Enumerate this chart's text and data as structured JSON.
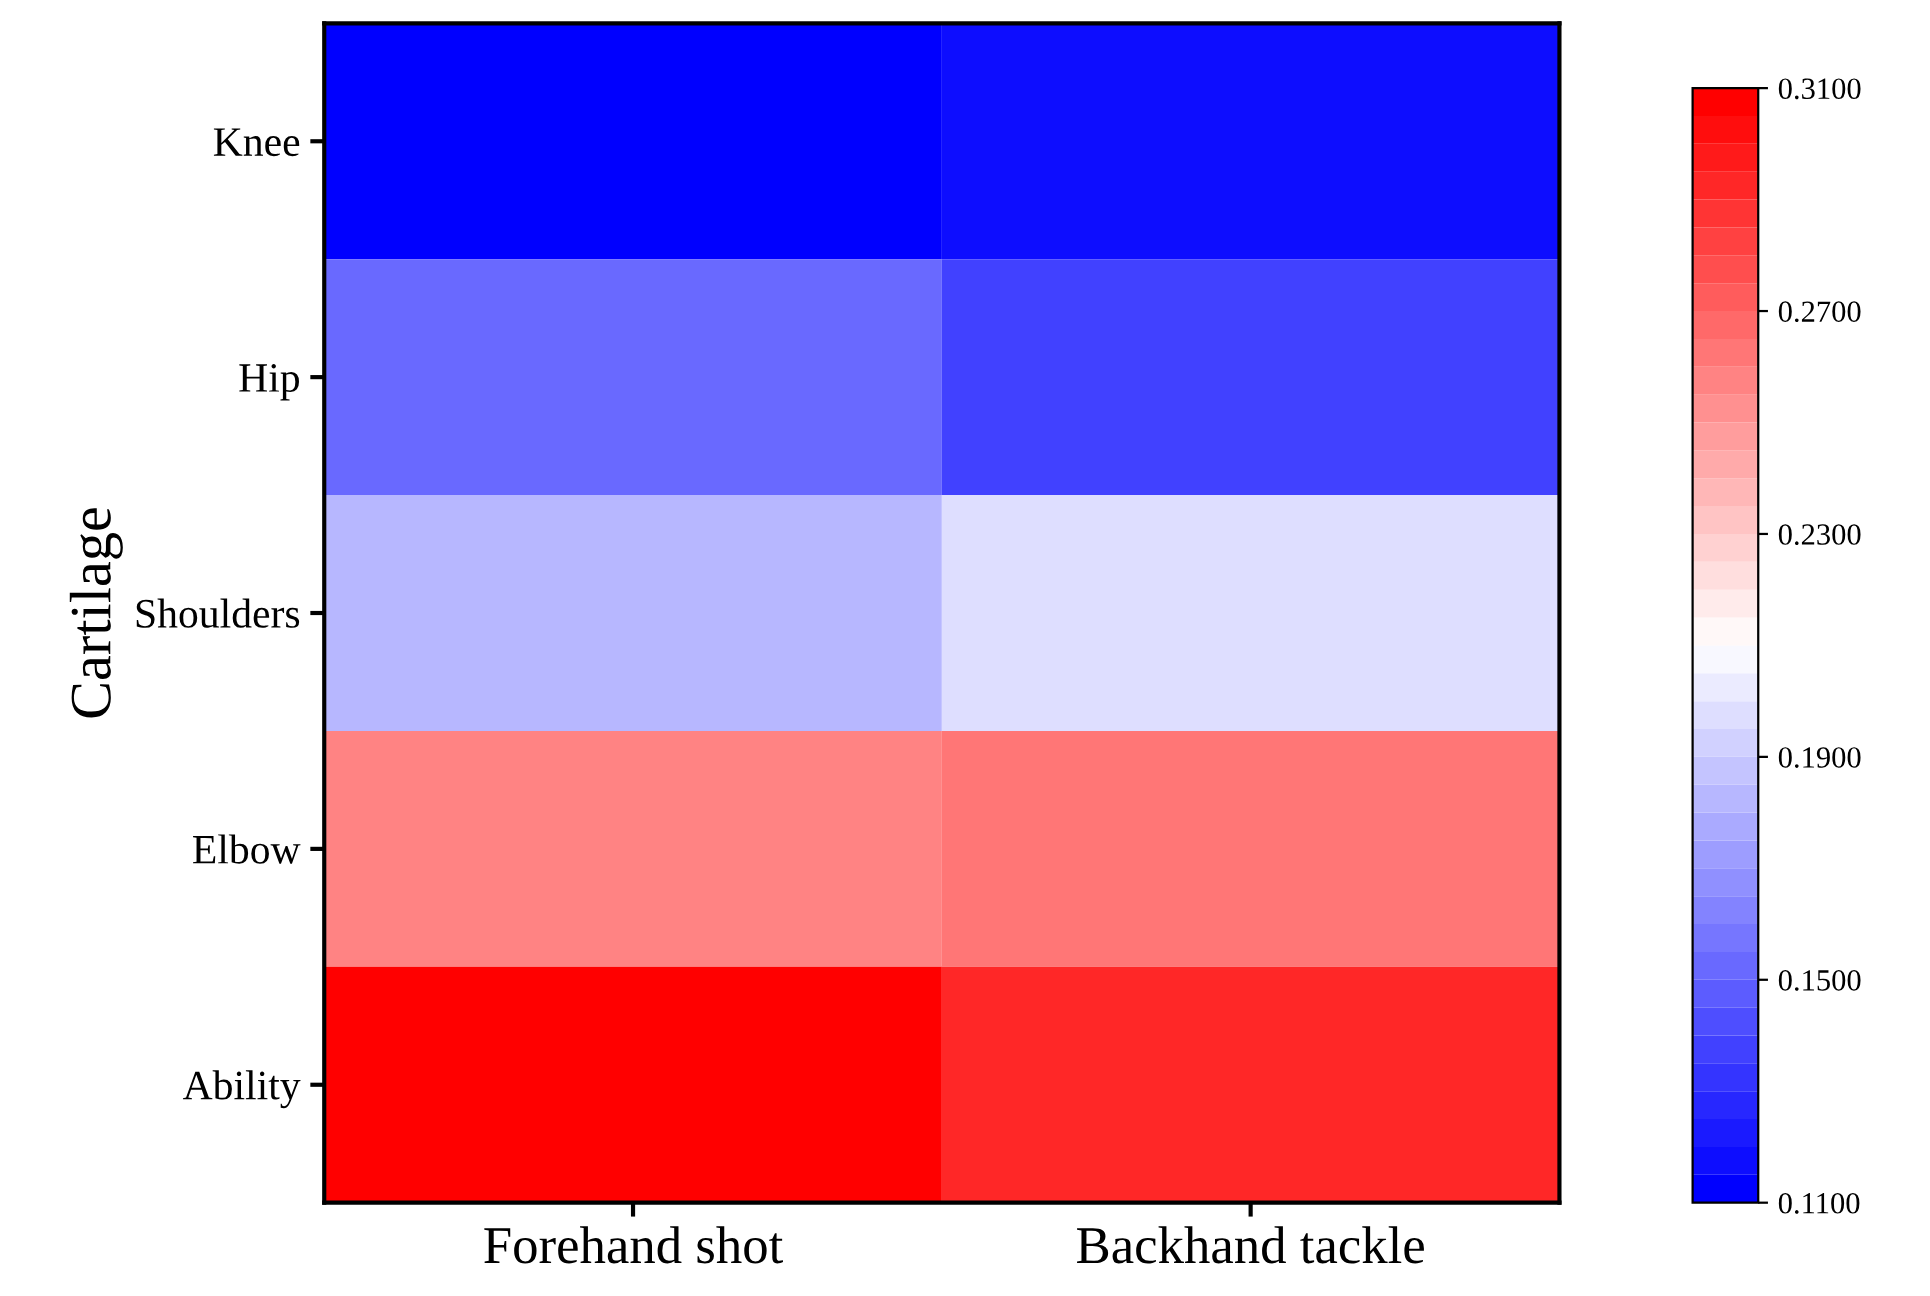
{
  "chart_data": {
    "type": "heatmap",
    "ylabel": "Cartilage",
    "categories": [
      "Forehand shot",
      "Backhand tackle"
    ],
    "y_categories": [
      "Knee",
      "Hip",
      "Shoulders",
      "Elbow",
      "Ability"
    ],
    "cells": [
      [
        0.11,
        0.118
      ],
      [
        0.152,
        0.135
      ],
      [
        0.18,
        0.195
      ],
      [
        0.256,
        0.263
      ],
      [
        0.31,
        0.291
      ]
    ],
    "clim": [
      0.11,
      0.31
    ],
    "cticks": [
      {
        "value": 0.11,
        "label": "0.1100"
      },
      {
        "value": 0.15,
        "label": "0.1500"
      },
      {
        "value": 0.19,
        "label": "0.1900"
      },
      {
        "value": 0.23,
        "label": "0.2300"
      },
      {
        "value": 0.27,
        "label": "0.2700"
      },
      {
        "value": 0.31,
        "label": "0.3100"
      }
    ]
  }
}
